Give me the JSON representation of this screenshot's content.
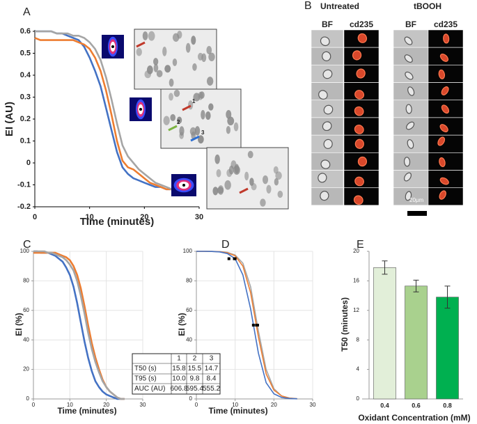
{
  "chart_data": [
    {
      "type": "line",
      "xlabel": "Time (minutes)",
      "ylabel": "EI (AU)",
      "x": [
        0,
        1,
        2,
        3,
        4,
        5,
        6,
        7,
        8,
        9,
        10,
        11,
        12,
        13,
        14,
        15,
        16,
        17,
        18,
        19,
        20,
        21,
        22,
        23,
        24,
        25
      ],
      "series": [
        {
          "color": "#4472c4",
          "values": [
            0.6,
            0.6,
            0.6,
            0.6,
            0.59,
            0.59,
            0.58,
            0.57,
            0.56,
            0.53,
            0.48,
            0.42,
            0.35,
            0.25,
            0.15,
            0.05,
            -0.02,
            -0.05,
            -0.07,
            -0.08,
            -0.09,
            -0.1,
            -0.11,
            -0.11,
            -0.12,
            -0.12
          ]
        },
        {
          "color": "#ed7d31",
          "values": [
            0.57,
            0.56,
            0.56,
            0.56,
            0.56,
            0.56,
            0.56,
            0.56,
            0.55,
            0.54,
            0.52,
            0.48,
            0.42,
            0.33,
            0.22,
            0.1,
            0.01,
            -0.02,
            -0.03,
            -0.05,
            -0.07,
            -0.09,
            -0.1,
            -0.11,
            -0.12,
            -0.12
          ]
        },
        {
          "color": "#a5a5a5",
          "values": [
            0.6,
            0.6,
            0.6,
            0.6,
            0.59,
            0.59,
            0.59,
            0.58,
            0.58,
            0.57,
            0.55,
            0.52,
            0.47,
            0.39,
            0.29,
            0.18,
            0.08,
            0.03,
            0.0,
            -0.03,
            -0.05,
            -0.07,
            -0.09,
            -0.1,
            -0.11,
            -0.12
          ]
        }
      ],
      "xlim": [
        0,
        30
      ],
      "xticks": [
        0,
        10,
        20,
        30
      ],
      "ylim": [
        -0.2,
        0.6
      ],
      "yticks": [
        -0.2,
        -0.1,
        0,
        0.1,
        0.2,
        0.3,
        0.4,
        0.5,
        0.6
      ],
      "grid": false
    },
    {
      "type": "line",
      "xlabel": "Time (minutes)",
      "ylabel": "EI (%)",
      "x": [
        0,
        1,
        2,
        3,
        4,
        5,
        6,
        7,
        8,
        9,
        10,
        11,
        12,
        13,
        14,
        15,
        16,
        17,
        18,
        19,
        20,
        21,
        22,
        23,
        24,
        25
      ],
      "series": [
        {
          "color": "#4472c4",
          "values": [
            100,
            100,
            99,
            99,
            99,
            98,
            97,
            95,
            93,
            89,
            84,
            76,
            65,
            52,
            39,
            28,
            19,
            12,
            8,
            5,
            3,
            2,
            1,
            0,
            0,
            0
          ]
        },
        {
          "color": "#ed7d31",
          "values": [
            99,
            99,
            99,
            99,
            99,
            99,
            99,
            98,
            97,
            96,
            94,
            90,
            84,
            75,
            63,
            50,
            38,
            28,
            20,
            13,
            8,
            5,
            3,
            1,
            0,
            0
          ]
        },
        {
          "color": "#a5a5a5",
          "values": [
            100,
            100,
            100,
            100,
            99,
            99,
            98,
            97,
            96,
            94,
            91,
            87,
            80,
            70,
            58,
            45,
            34,
            25,
            18,
            12,
            8,
            5,
            3,
            1,
            0,
            0
          ]
        }
      ],
      "xlim": [
        0,
        30
      ],
      "xticks": [
        0,
        10,
        20,
        30
      ],
      "ylim": [
        0,
        100
      ],
      "yticks": [
        0,
        20,
        40,
        60,
        80,
        100
      ],
      "grid": true
    },
    {
      "type": "line",
      "xlabel": "Time (minutes)",
      "ylabel": "EI (%)",
      "x": [
        0,
        2,
        4,
        6,
        8,
        10,
        12,
        14,
        16,
        18,
        20,
        22,
        24,
        26
      ],
      "series": [
        {
          "color": "#a5a5a5",
          "values": [
            100,
            100,
            100,
            99.8,
            99.3,
            97.5,
            92,
            76,
            46,
            20,
            7,
            2,
            0.6,
            0.2
          ]
        },
        {
          "color": "#ed7d31",
          "values": [
            100,
            100,
            99.9,
            99.7,
            99,
            97,
            90,
            72,
            42,
            17,
            6,
            2,
            0.5,
            0.1
          ]
        },
        {
          "color": "#4472c4",
          "values": [
            100,
            100,
            99.9,
            99.6,
            98.5,
            95,
            84,
            61,
            31,
            11,
            3.5,
            1,
            0.3,
            0.1
          ]
        }
      ],
      "markers": {
        "x": [
          8.4,
          9.8,
          10.0,
          14.7,
          15.5,
          15.8
        ],
        "y": [
          95,
          95,
          95,
          50,
          50,
          50
        ]
      },
      "xlim": [
        0,
        30
      ],
      "xticks": [
        0,
        10,
        20,
        30
      ],
      "ylim": [
        0,
        100
      ],
      "yticks": [
        0,
        20,
        40,
        60,
        80,
        100
      ],
      "grid": true
    },
    {
      "type": "bar",
      "xlabel": "Oxidant Concentration (mM)",
      "ylabel": "T50 (minutes)",
      "categories": [
        "0.4",
        "0.6",
        "0.8"
      ],
      "values": [
        17.8,
        15.3,
        13.8
      ],
      "errors": [
        0.9,
        0.8,
        1.5
      ],
      "colors": [
        "#e2efd9",
        "#a9d18e",
        "#00b050"
      ],
      "ylim": [
        0,
        20
      ],
      "yticks": [
        0,
        4,
        8,
        12,
        16,
        20
      ],
      "grid": false
    }
  ],
  "panels": [
    "A",
    "B",
    "C",
    "D",
    "E"
  ],
  "inset_labels": [
    "1",
    "2",
    "3"
  ],
  "panel_b": {
    "groups": [
      "Untreated",
      "tBOOH"
    ],
    "columns": [
      "BF",
      "cd235",
      "BF",
      "cd235"
    ],
    "scale": "20µm"
  },
  "table": {
    "columns": [
      "1",
      "2",
      "3"
    ],
    "rows": [
      {
        "label": "T50 (s)",
        "cells": [
          "15.8",
          "15.5",
          "14.7"
        ]
      },
      {
        "label": "T95 (s)",
        "cells": [
          "10.0",
          "9.8",
          "8.4"
        ]
      },
      {
        "label": "AUC (AU)",
        "cells": [
          "606.8",
          "595.4",
          "555.2"
        ]
      }
    ]
  }
}
